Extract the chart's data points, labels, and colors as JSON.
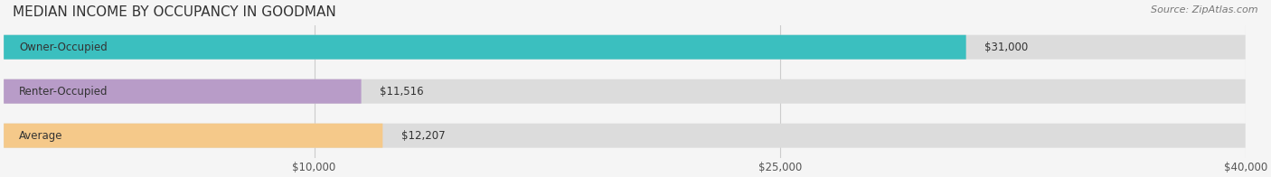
{
  "title": "MEDIAN INCOME BY OCCUPANCY IN GOODMAN",
  "source": "Source: ZipAtlas.com",
  "categories": [
    "Owner-Occupied",
    "Renter-Occupied",
    "Average"
  ],
  "values": [
    31000,
    11516,
    12207
  ],
  "bar_colors": [
    "#3bbfbf",
    "#b89cc8",
    "#f5c98a"
  ],
  "bar_bg_color": "#e8e8e8",
  "value_labels": [
    "$31,000",
    "$11,516",
    "$12,207"
  ],
  "xlim": [
    0,
    40000
  ],
  "xticks": [
    10000,
    25000,
    40000
  ],
  "xtick_labels": [
    "$10,000",
    "$25,000",
    "$40,000"
  ],
  "title_fontsize": 11,
  "label_fontsize": 8.5,
  "tick_fontsize": 8.5,
  "source_fontsize": 8,
  "bar_height": 0.55,
  "background_color": "#f5f5f5",
  "bar_bg_alpha": 1.0,
  "grid_color": "#cccccc"
}
